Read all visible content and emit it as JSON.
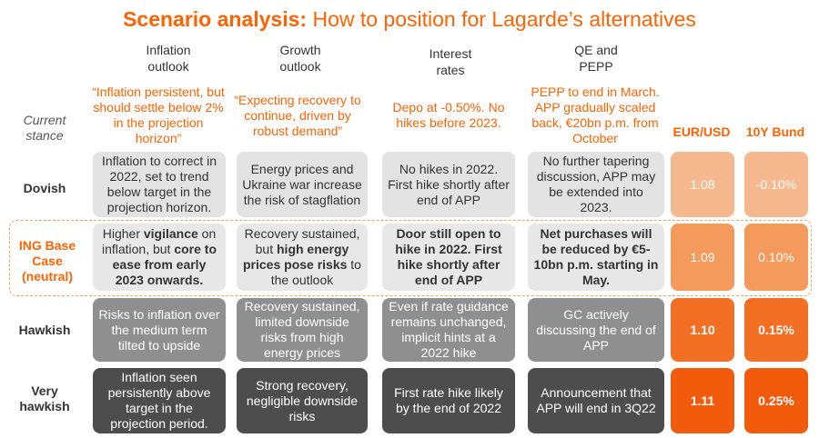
{
  "title": {
    "bold": "Scenario analysis:",
    "rest": " How to position for Lagarde’s alternatives"
  },
  "columns": {
    "inflation": [
      "Inflation",
      "outlook"
    ],
    "growth": [
      "Growth",
      "outlook"
    ],
    "rates": [
      "Interest",
      "rates"
    ],
    "qe": [
      "QE and",
      "PEPP"
    ],
    "eurusd": "EUR/USD",
    "bund": "10Y Bund"
  },
  "current_stance": {
    "label": [
      "Current",
      "stance"
    ],
    "inflation": "“Inflation persistent, but should settle below 2% in the projection horizon”",
    "growth": "“Expecting recovery to continue, driven by robust demand”",
    "rates": "Depo at -0.50%. No hikes before 2023.",
    "qe": "PEPP to end in March. APP gradually scaled back, €20bn p.m. from October"
  },
  "rows": {
    "dovish": {
      "label": "Dovish",
      "inflation": "Inflation to correct in 2022, set to trend below target in the projection horizon.",
      "growth": "Energy prices and Ukraine war increase the risk of stagflation",
      "rates": "No hikes in 2022. First hike shortly after end of APP",
      "qe": "No further tapering discussion, APP may be extended into 2023.",
      "eurusd": "1.08",
      "bund": "-0.10%"
    },
    "base": {
      "label": [
        "ING Base",
        "Case",
        "(neutral)"
      ],
      "inflation": {
        "t1": "Higher ",
        "b1": "vigilance",
        "t2": " on inflation, but ",
        "b2": "core to ease from early 2023 onwards."
      },
      "growth": {
        "t1": "Recovery sustained, but ",
        "b1": "high energy prices pose risks",
        "t2": " to the outlook"
      },
      "rates": "Door still open to hike in 2022. First hike shortly after end of APP",
      "qe": "Net purchases will be reduced by €5-10bn p.m. starting in May.",
      "eurusd": "1.09",
      "bund": "0.10%"
    },
    "hawkish": {
      "label": "Hawkish",
      "inflation": "Risks to inflation over the medium term tilted to upside",
      "growth": "Recovery sustained, limited downside risks from high energy prices",
      "rates": "Even if rate guidance remains unchanged, implicit hints at a 2022 hike",
      "qe": "GC actively discussing the end of APP",
      "eurusd": "1.10",
      "bund": "0.15%"
    },
    "very_hawkish": {
      "label": [
        "Very",
        "hawkish"
      ],
      "inflation": "Inflation seen persistently above target in the projection period.",
      "growth": "Strong recovery, negligible downside risks",
      "rates": "First rate hike likely by the end of 2022",
      "qe": "Announcement that APP will end in 3Q22",
      "eurusd": "1.11",
      "bund": "0.25%"
    }
  }
}
